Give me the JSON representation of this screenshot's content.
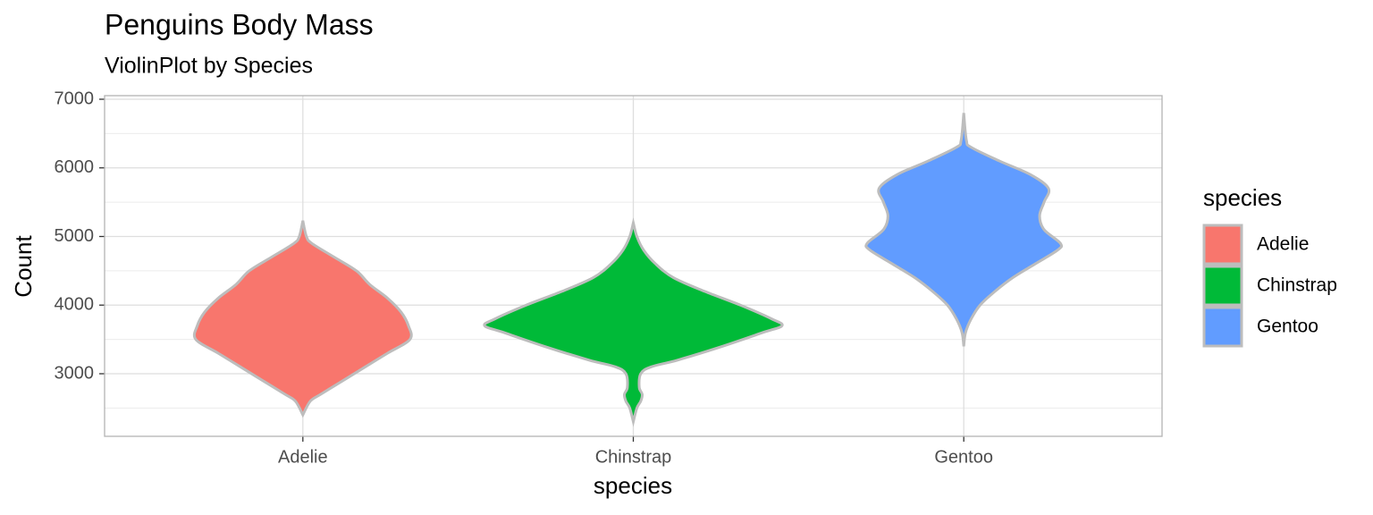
{
  "chart_data": {
    "type": "violin",
    "title": "Penguins Body Mass",
    "subtitle": "ViolinPlot by Species",
    "xlabel": "species",
    "ylabel": "Count",
    "legend_title": "species",
    "legend_position": "right",
    "categories": [
      "Adelie",
      "Chinstrap",
      "Gentoo"
    ],
    "ylim": [
      2088,
      7052
    ],
    "yticks": [
      3000,
      4000,
      5000,
      6000,
      7000
    ],
    "grid": true,
    "outline_color": "#bdbdbd",
    "series": [
      {
        "name": "Adelie",
        "color": "#F8766D",
        "values": [
          2400,
          2600,
          2700,
          2900,
          3100,
          3300,
          3500,
          3700,
          3900,
          4100,
          4300,
          4500,
          4700,
          4900,
          5000,
          5230
        ],
        "density": [
          0,
          0.05,
          0.12,
          0.27,
          0.42,
          0.57,
          0.72,
          0.71,
          0.66,
          0.57,
          0.45,
          0.36,
          0.21,
          0.06,
          0.024,
          0
        ]
      },
      {
        "name": "Chinstrap",
        "color": "#00BA38",
        "values": [
          2300,
          2500,
          2600,
          2700,
          2800,
          3000,
          3100,
          3200,
          3400,
          3600,
          3700,
          3800,
          4000,
          4200,
          4400,
          4600,
          4800,
          5000,
          5200
        ],
        "density": [
          0,
          0.024,
          0.05,
          0.06,
          0.04,
          0.05,
          0.12,
          0.3,
          0.6,
          0.87,
          1,
          0.93,
          0.72,
          0.48,
          0.27,
          0.15,
          0.07,
          0.024,
          0
        ]
      },
      {
        "name": "Gentoo",
        "color": "#619CFF",
        "values": [
          3400,
          3600,
          3800,
          4000,
          4200,
          4400,
          4600,
          4800,
          4900,
          5100,
          5300,
          5500,
          5700,
          5900,
          6100,
          6300,
          6400,
          6800
        ],
        "density": [
          0,
          0.012,
          0.05,
          0.11,
          0.21,
          0.33,
          0.48,
          0.63,
          0.65,
          0.54,
          0.51,
          0.54,
          0.57,
          0.45,
          0.24,
          0.05,
          0.018,
          0
        ]
      }
    ]
  }
}
